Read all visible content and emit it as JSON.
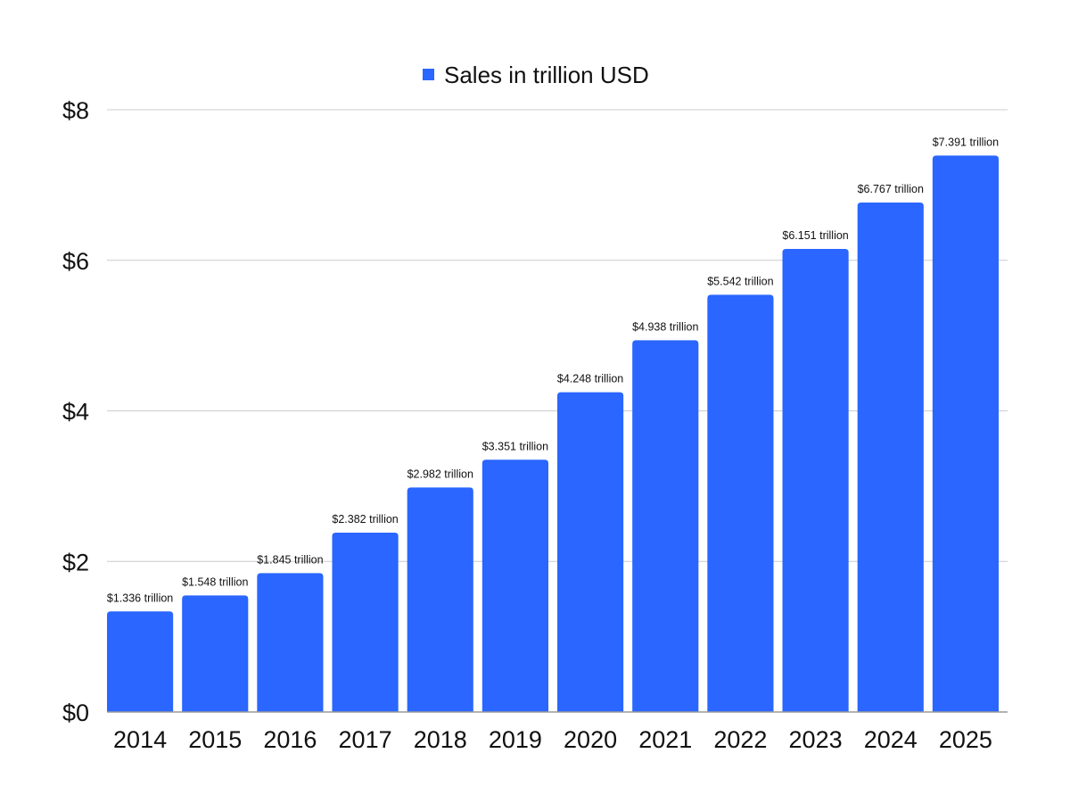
{
  "chart_data": {
    "type": "bar",
    "title": "",
    "xlabel": "",
    "ylabel": "",
    "categories": [
      "2014",
      "2015",
      "2016",
      "2017",
      "2018",
      "2019",
      "2020",
      "2021",
      "2022",
      "2023",
      "2024",
      "2025"
    ],
    "series": [
      {
        "name": "Sales in trillion USD",
        "color": "#2a66ff",
        "values": [
          1.336,
          1.548,
          1.845,
          2.382,
          2.982,
          3.351,
          4.248,
          4.938,
          5.542,
          6.151,
          6.767,
          7.391
        ],
        "data_labels": [
          "$1.336 trillion",
          "$1.548 trillion",
          "$1.845 trillion",
          "$2.382 trillion",
          "$2.982 trillion",
          "$3.351 trillion",
          "$4.248 trillion",
          "$4.938 trillion",
          "$5.542 trillion",
          "$6.151 trillion",
          "$6.767 trillion",
          "$7.391 trillion"
        ]
      }
    ],
    "ylim": [
      0,
      8
    ],
    "yticks": [
      0,
      2,
      4,
      6,
      8
    ],
    "ytick_labels": [
      "$0",
      "$2",
      "$4",
      "$6",
      "$8"
    ],
    "grid": true,
    "legend_position": "top-center",
    "gridline_color": "#cccccc",
    "axis_color": "#999999"
  }
}
